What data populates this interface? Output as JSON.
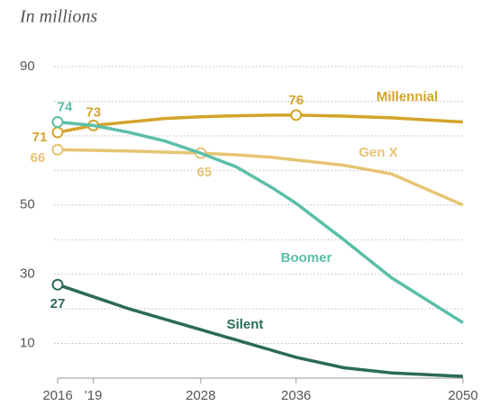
{
  "chart_data": {
    "type": "line",
    "subtitle": "In millions",
    "x": [
      2016,
      2019,
      2022,
      2025,
      2028,
      2031,
      2034,
      2036,
      2040,
      2044,
      2050
    ],
    "series": [
      {
        "name": "Millennial",
        "color": "#d4a32a",
        "values": [
          71,
          73,
          74,
          75,
          75.5,
          75.8,
          76,
          76,
          75.7,
          75.2,
          74
        ],
        "value_labels": [
          "71",
          "73",
          null,
          null,
          null,
          null,
          null,
          "76",
          null,
          null,
          null
        ]
      },
      {
        "name": "Gen X",
        "color": "#e6c473",
        "values": [
          66,
          65.8,
          65.6,
          65.3,
          65,
          64.5,
          63.8,
          63,
          61.5,
          59,
          50
        ],
        "value_labels": [
          "66",
          null,
          null,
          null,
          "65",
          null,
          null,
          null,
          null,
          null,
          null
        ]
      },
      {
        "name": "Boomer",
        "color": "#5bbfa8",
        "values": [
          74,
          73,
          71,
          68.5,
          65,
          61,
          55,
          50.5,
          40,
          29,
          16
        ],
        "value_labels": [
          "74",
          null,
          null,
          null,
          null,
          null,
          null,
          null,
          null,
          null,
          null
        ]
      },
      {
        "name": "Silent",
        "color": "#2b6b55",
        "values": [
          27,
          23.5,
          20,
          17,
          14,
          11,
          8,
          6,
          3,
          1.5,
          0.5
        ],
        "value_labels": [
          "27",
          null,
          null,
          null,
          null,
          null,
          null,
          null,
          null,
          null,
          null
        ]
      }
    ],
    "xlim": [
      2016,
      2050
    ],
    "xticks": [
      2016,
      {
        "value": 2019,
        "label": "'19"
      },
      2028,
      2036,
      2050
    ],
    "ylim": [
      0,
      90
    ],
    "yticks": [
      10,
      30,
      50,
      90
    ],
    "minor_yticks": [
      20,
      40,
      60,
      70,
      80
    ],
    "grid": true
  }
}
